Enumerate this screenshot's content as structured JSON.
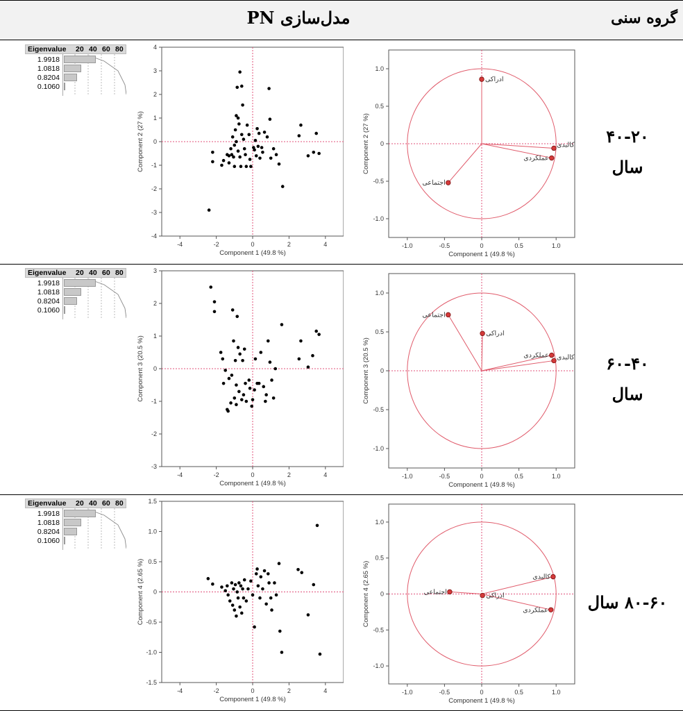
{
  "header": {
    "title": "مدل‌سازی PN",
    "age_group": "گروه سنی"
  },
  "eigen": {
    "label": "Eigenvalue",
    "ticks": [
      "20",
      "40",
      "60",
      "80"
    ],
    "values": [
      "1.9918",
      "1.0818",
      "0.8204",
      "0.1060"
    ],
    "percents": [
      49.8,
      27.0,
      20.5,
      2.65
    ]
  },
  "rows": [
    {
      "age": [
        "۴۰-۲۰",
        "سال"
      ],
      "scatter": {
        "xlabel": "Component 1  (49.8 %)",
        "ylabel": "Component 2  (27 %)",
        "xlim": [
          -5,
          5
        ],
        "ylim": [
          -4,
          4
        ],
        "xticks": [
          "-4",
          "-2",
          "0",
          "2",
          "4"
        ],
        "yticks": [
          "-4",
          "-3",
          "-2",
          "-1",
          "0",
          "1",
          "2",
          "3",
          "4"
        ]
      },
      "loading": {
        "xlabel": "Component 1  (49.8 %)",
        "ylabel": "Component 2  (27 %)",
        "xticks": [
          "-1.0",
          "-0.5",
          "0",
          "0.5",
          "1.0"
        ],
        "yticks": [
          "-1.0",
          "-0.5",
          "0",
          "0.5",
          "1.0"
        ],
        "vars": [
          {
            "label": "ادراکی",
            "x": 0.0,
            "y": 0.86
          },
          {
            "label": "کالبدی",
            "x": 0.97,
            "y": -0.06
          },
          {
            "label": "عملکردی",
            "x": 0.94,
            "y": -0.19
          },
          {
            "label": "اجتماعی",
            "x": -0.45,
            "y": -0.52
          }
        ]
      }
    },
    {
      "age": [
        "۶۰-۴۰",
        "سال"
      ],
      "scatter": {
        "xlabel": "Component 1  (49.8 %)",
        "ylabel": "Component 3  (20.5 %)",
        "xlim": [
          -5,
          5
        ],
        "ylim": [
          -3,
          3
        ],
        "xticks": [
          "-4",
          "-2",
          "0",
          "2",
          "4"
        ],
        "yticks": [
          "-3",
          "-2",
          "-1",
          "0",
          "1",
          "2",
          "3"
        ]
      },
      "loading": {
        "xlabel": "Component 1  (49.8 %)",
        "ylabel": "Component 3  (20.5 %)",
        "xticks": [
          "-1.0",
          "-0.5",
          "0",
          "0.5",
          "1.0"
        ],
        "yticks": [
          "-1.0",
          "-0.5",
          "0",
          "0.5",
          "1.0"
        ],
        "vars": [
          {
            "label": "اجتماعی",
            "x": -0.45,
            "y": 0.72
          },
          {
            "label": "ادراکی",
            "x": 0.01,
            "y": 0.48
          },
          {
            "label": "عملکردی",
            "x": 0.94,
            "y": 0.2
          },
          {
            "label": "کالبدی",
            "x": 0.97,
            "y": 0.13
          }
        ]
      }
    },
    {
      "age": [
        "۸۰-۶۰ سال"
      ],
      "scatter": {
        "xlabel": "Component 1  (49.8 %)",
        "ylabel": "Component 4  (2.65 %)",
        "xlim": [
          -5,
          5
        ],
        "ylim": [
          -1.5,
          1.5
        ],
        "xticks": [
          "-4",
          "-2",
          "0",
          "2",
          "4"
        ],
        "yticks": [
          "-1.5",
          "-1.0",
          "-0.5",
          "0",
          "0.5",
          "1.0",
          "1.5"
        ]
      },
      "loading": {
        "xlabel": "Component 1  (49.8 %)",
        "ylabel": "Component 4  (2.65 %)",
        "xticks": [
          "-1.0",
          "-0.5",
          "0",
          "0.5",
          "1.0"
        ],
        "yticks": [
          "-1.0",
          "-0.5",
          "0",
          "0.5",
          "1.0"
        ],
        "vars": [
          {
            "label": "اجتماعی",
            "x": -0.43,
            "y": 0.03
          },
          {
            "label": "ادراکی",
            "x": 0.01,
            "y": -0.02
          },
          {
            "label": "کالبدی",
            "x": 0.96,
            "y": 0.24
          },
          {
            "label": "عملکردی",
            "x": 0.93,
            "y": -0.22
          }
        ]
      }
    }
  ],
  "chart_data": [
    {
      "type": "scatter",
      "xlabel": "Component 1  (49.8 %)",
      "ylabel": "Component 2  (27 %)",
      "xlim": [
        -5,
        5
      ],
      "ylim": [
        -4,
        4
      ],
      "points": [
        [
          -2.4,
          -2.9
        ],
        [
          -2.2,
          -0.45
        ],
        [
          -2.2,
          -0.85
        ],
        [
          -1.7,
          -1.0
        ],
        [
          -1.6,
          -0.8
        ],
        [
          -1.4,
          -0.55
        ],
        [
          -1.3,
          -0.6
        ],
        [
          -1.3,
          -0.9
        ],
        [
          -1.2,
          -0.3
        ],
        [
          -1.15,
          -0.55
        ],
        [
          -1.1,
          0.2
        ],
        [
          -1.05,
          -0.65
        ],
        [
          -1.0,
          -0.15
        ],
        [
          -1.0,
          -1.05
        ],
        [
          -0.95,
          0.5
        ],
        [
          -0.9,
          1.1
        ],
        [
          -0.9,
          0.0
        ],
        [
          -0.85,
          2.3
        ],
        [
          -0.8,
          -0.4
        ],
        [
          -0.8,
          1.0
        ],
        [
          -0.75,
          0.75
        ],
        [
          -0.7,
          2.95
        ],
        [
          -0.7,
          -0.65
        ],
        [
          -0.65,
          -1.05
        ],
        [
          -0.6,
          0.3
        ],
        [
          -0.6,
          2.35
        ],
        [
          -0.55,
          1.55
        ],
        [
          -0.5,
          0.1
        ],
        [
          -0.45,
          -0.3
        ],
        [
          -0.4,
          -0.55
        ],
        [
          -0.35,
          -1.05
        ],
        [
          -0.3,
          0.7
        ],
        [
          -0.2,
          0.3
        ],
        [
          -0.15,
          -0.75
        ],
        [
          -0.1,
          -1.05
        ],
        [
          0.05,
          -0.25
        ],
        [
          0.1,
          -0.35
        ],
        [
          0.15,
          0.05
        ],
        [
          0.2,
          -0.6
        ],
        [
          0.25,
          0.55
        ],
        [
          0.3,
          -0.2
        ],
        [
          0.35,
          0.35
        ],
        [
          0.4,
          -0.7
        ],
        [
          0.5,
          -0.25
        ],
        [
          0.55,
          -0.45
        ],
        [
          0.65,
          0.4
        ],
        [
          0.8,
          0.2
        ],
        [
          0.9,
          2.25
        ],
        [
          0.95,
          0.95
        ],
        [
          1.0,
          -0.7
        ],
        [
          1.15,
          -0.3
        ],
        [
          1.3,
          -0.55
        ],
        [
          1.45,
          -0.95
        ],
        [
          1.65,
          -1.9
        ],
        [
          2.55,
          0.25
        ],
        [
          2.65,
          0.7
        ],
        [
          3.05,
          -0.6
        ],
        [
          3.35,
          -0.45
        ],
        [
          3.5,
          0.35
        ],
        [
          3.65,
          -0.5
        ]
      ]
    },
    {
      "type": "scatter",
      "xlabel": "Component 1  (49.8 %)",
      "ylabel": "Component 3  (20.5 %)",
      "xlim": [
        -5,
        5
      ],
      "ylim": [
        -3,
        3
      ],
      "points": [
        [
          -2.3,
          2.5
        ],
        [
          -2.1,
          2.05
        ],
        [
          -2.1,
          1.75
        ],
        [
          -1.75,
          0.5
        ],
        [
          -1.65,
          0.3
        ],
        [
          -1.5,
          -0.05
        ],
        [
          -1.4,
          -1.25
        ],
        [
          -1.35,
          -1.3
        ],
        [
          -1.3,
          -0.3
        ],
        [
          -1.2,
          -1.05
        ],
        [
          -1.15,
          -0.2
        ],
        [
          -1.1,
          1.8
        ],
        [
          -1.05,
          0.85
        ],
        [
          -1.0,
          -0.9
        ],
        [
          -0.95,
          0.25
        ],
        [
          -0.9,
          -0.5
        ],
        [
          -0.9,
          -1.1
        ],
        [
          -0.85,
          1.6
        ],
        [
          -0.8,
          0.65
        ],
        [
          -0.75,
          -0.7
        ],
        [
          -0.7,
          0.45
        ],
        [
          -0.6,
          -0.95
        ],
        [
          -0.55,
          0.25
        ],
        [
          -0.5,
          -0.8
        ],
        [
          -0.45,
          0.6
        ],
        [
          -0.35,
          -1.0
        ],
        [
          -0.2,
          -0.35
        ],
        [
          -0.05,
          -1.15
        ],
        [
          0.0,
          -0.95
        ],
        [
          0.1,
          -0.65
        ],
        [
          0.25,
          -0.45
        ],
        [
          0.35,
          -0.45
        ],
        [
          0.45,
          0.5
        ],
        [
          0.6,
          -0.55
        ],
        [
          0.7,
          -1.0
        ],
        [
          0.75,
          -0.8
        ],
        [
          0.85,
          0.85
        ],
        [
          0.95,
          0.2
        ],
        [
          1.05,
          -0.35
        ],
        [
          1.15,
          -0.9
        ],
        [
          1.25,
          0.0
        ],
        [
          1.6,
          1.35
        ],
        [
          2.55,
          0.3
        ],
        [
          2.65,
          0.85
        ],
        [
          3.05,
          0.05
        ],
        [
          3.3,
          0.4
        ],
        [
          3.5,
          1.15
        ],
        [
          3.65,
          1.05
        ],
        [
          -0.4,
          -0.45
        ],
        [
          0.15,
          0.3
        ],
        [
          -1.6,
          -0.45
        ],
        [
          -0.15,
          -0.6
        ]
      ]
    },
    {
      "type": "scatter",
      "xlabel": "Component 1  (49.8 %)",
      "ylabel": "Component 4  (2.65 %)",
      "xlim": [
        -5,
        5
      ],
      "ylim": [
        -1.5,
        1.5
      ],
      "points": [
        [
          -2.45,
          0.22
        ],
        [
          -2.2,
          0.13
        ],
        [
          -1.7,
          0.08
        ],
        [
          -1.5,
          0.02
        ],
        [
          -1.4,
          0.1
        ],
        [
          -1.35,
          -0.05
        ],
        [
          -1.25,
          -0.15
        ],
        [
          -1.15,
          0.15
        ],
        [
          -1.1,
          -0.22
        ],
        [
          -1.05,
          0.05
        ],
        [
          -1.0,
          -0.3
        ],
        [
          -0.95,
          0.12
        ],
        [
          -0.9,
          -0.4
        ],
        [
          -0.85,
          0.0
        ],
        [
          -0.8,
          -0.1
        ],
        [
          -0.75,
          0.15
        ],
        [
          -0.7,
          -0.25
        ],
        [
          -0.65,
          0.1
        ],
        [
          -0.6,
          -0.35
        ],
        [
          -0.55,
          0.05
        ],
        [
          -0.5,
          -0.1
        ],
        [
          -0.45,
          0.2
        ],
        [
          -0.35,
          -0.15
        ],
        [
          -0.25,
          0.05
        ],
        [
          -0.1,
          0.18
        ],
        [
          0.0,
          -0.05
        ],
        [
          0.1,
          -0.58
        ],
        [
          0.2,
          0.3
        ],
        [
          0.25,
          0.38
        ],
        [
          0.3,
          0.1
        ],
        [
          0.4,
          -0.1
        ],
        [
          0.45,
          0.25
        ],
        [
          0.55,
          0.05
        ],
        [
          0.65,
          0.35
        ],
        [
          0.75,
          -0.2
        ],
        [
          0.85,
          0.3
        ],
        [
          0.9,
          0.15
        ],
        [
          1.0,
          -0.1
        ],
        [
          1.05,
          -0.3
        ],
        [
          1.2,
          0.15
        ],
        [
          1.3,
          -0.05
        ],
        [
          1.45,
          0.47
        ],
        [
          1.5,
          -0.65
        ],
        [
          1.6,
          -1.0
        ],
        [
          2.5,
          0.37
        ],
        [
          2.7,
          0.32
        ],
        [
          3.05,
          -0.38
        ],
        [
          3.35,
          0.12
        ],
        [
          3.55,
          1.1
        ],
        [
          3.7,
          -1.03
        ]
      ]
    },
    {
      "type": "scatter",
      "xlabel": "Component 1  (49.8 %)",
      "ylabel": "Component 2  (27 %)",
      "xlim": [
        -1.25,
        1.25
      ],
      "ylim": [
        -1.25,
        1.25
      ],
      "points": [
        [
          0.0,
          0.86
        ],
        [
          0.97,
          -0.06
        ],
        [
          0.94,
          -0.19
        ],
        [
          -0.45,
          -0.52
        ]
      ]
    },
    {
      "type": "scatter",
      "xlabel": "Component 1  (49.8 %)",
      "ylabel": "Component 3  (20.5 %)",
      "xlim": [
        -1.25,
        1.25
      ],
      "ylim": [
        -1.25,
        1.25
      ],
      "points": [
        [
          -0.45,
          0.72
        ],
        [
          0.01,
          0.48
        ],
        [
          0.94,
          0.2
        ],
        [
          0.97,
          0.13
        ]
      ]
    },
    {
      "type": "scatter",
      "xlabel": "Component 1  (49.8 %)",
      "ylabel": "Component 4  (2.65 %)",
      "xlim": [
        -1.25,
        1.25
      ],
      "ylim": [
        -1.25,
        1.25
      ],
      "points": [
        [
          -0.43,
          0.03
        ],
        [
          0.01,
          -0.02
        ],
        [
          0.96,
          0.24
        ],
        [
          0.93,
          -0.22
        ]
      ]
    }
  ]
}
